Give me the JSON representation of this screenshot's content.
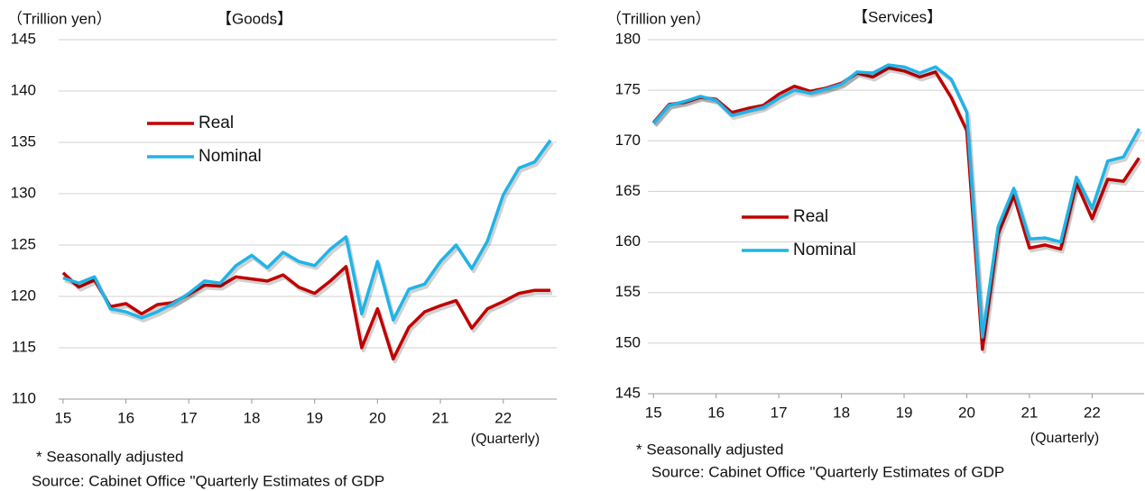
{
  "chart_data": [
    {
      "type": "line",
      "title": "【Goods】",
      "y_label": "（Trillion yen）",
      "x_label": "(Quarterly)",
      "notes": [
        "* Seasonally adjusted",
        "Source: Cabinet Office \"Quarterly Estimates of GDP"
      ],
      "x": [
        15,
        15.25,
        15.5,
        15.75,
        16,
        16.25,
        16.5,
        16.75,
        17,
        17.25,
        17.5,
        17.75,
        18,
        18.25,
        18.5,
        18.75,
        19,
        19.25,
        19.5,
        19.75,
        20,
        20.25,
        20.5,
        20.75,
        21,
        21.25,
        21.5,
        21.75,
        22,
        22.25,
        22.5,
        22.75
      ],
      "xlim": [
        14.93,
        22.85
      ],
      "xticks": [
        15,
        16,
        17,
        18,
        19,
        20,
        21,
        22
      ],
      "ylim": [
        110,
        145
      ],
      "yticks": [
        110,
        115,
        120,
        125,
        130,
        135,
        140,
        145
      ],
      "grid": true,
      "series": [
        {
          "name": "Real",
          "color": "#c00000",
          "values": [
            122.3,
            120.9,
            121.6,
            119.0,
            119.3,
            118.3,
            119.2,
            119.4,
            120.2,
            121.1,
            121.0,
            121.9,
            121.7,
            121.5,
            122.1,
            120.9,
            120.3,
            121.5,
            122.9,
            115.0,
            118.8,
            113.9,
            117.0,
            118.5,
            119.1,
            119.6,
            116.9,
            118.8,
            119.5,
            120.3,
            120.6,
            120.6
          ]
        },
        {
          "name": "Nominal",
          "color": "#1fb4e8",
          "values": [
            121.8,
            121.3,
            121.9,
            118.8,
            118.5,
            117.9,
            118.5,
            119.3,
            120.3,
            121.5,
            121.3,
            123.0,
            124.0,
            122.8,
            124.3,
            123.4,
            123.0,
            124.6,
            125.8,
            118.3,
            123.4,
            117.7,
            120.7,
            121.2,
            123.4,
            125.0,
            122.7,
            125.4,
            129.9,
            132.5,
            133.1,
            135.2
          ]
        }
      ]
    },
    {
      "type": "line",
      "title": "【Services】",
      "y_label": "（Trillion yen）",
      "x_label": "(Quarterly)",
      "notes": [
        "* Seasonally adjusted",
        "Source: Cabinet Office \"Quarterly Estimates of GDP"
      ],
      "x": [
        15,
        15.25,
        15.5,
        15.75,
        16,
        16.25,
        16.5,
        16.75,
        17,
        17.25,
        17.5,
        17.75,
        18,
        18.25,
        18.5,
        18.75,
        19,
        19.25,
        19.5,
        19.75,
        20,
        20.25,
        20.5,
        20.75,
        21,
        21.25,
        21.5,
        21.75,
        22,
        22.25,
        22.5,
        22.75
      ],
      "xlim": [
        14.91,
        22.83
      ],
      "xticks": [
        15,
        16,
        17,
        18,
        19,
        20,
        21,
        22
      ],
      "ylim": [
        145,
        180
      ],
      "yticks": [
        145,
        150,
        155,
        160,
        165,
        170,
        175,
        180
      ],
      "grid": true,
      "series": [
        {
          "name": "Real",
          "color": "#c00000",
          "values": [
            171.8,
            173.6,
            173.8,
            174.3,
            174.1,
            172.8,
            173.2,
            173.5,
            174.6,
            175.4,
            174.9,
            175.2,
            175.7,
            176.7,
            176.3,
            177.2,
            176.9,
            176.3,
            176.8,
            174.3,
            171.0,
            149.4,
            160.8,
            164.6,
            159.4,
            159.7,
            159.3,
            165.8,
            162.3,
            166.2,
            166.0,
            168.3
          ]
        },
        {
          "name": "Nominal",
          "color": "#1fb4e8",
          "values": [
            171.7,
            173.5,
            173.9,
            174.4,
            174.0,
            172.5,
            172.9,
            173.3,
            174.2,
            175.0,
            174.7,
            175.1,
            175.6,
            176.8,
            176.7,
            177.5,
            177.3,
            176.7,
            177.3,
            176.1,
            172.8,
            150.6,
            161.5,
            165.3,
            160.3,
            160.4,
            160.0,
            166.4,
            163.3,
            168.0,
            168.4,
            171.2
          ]
        }
      ]
    }
  ]
}
